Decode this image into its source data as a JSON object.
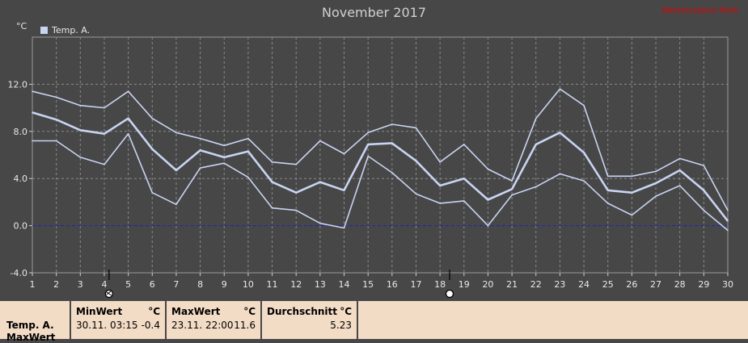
{
  "chart_data": {
    "type": "line",
    "title": "November 2017",
    "ylabel": "°C",
    "x": [
      1,
      2,
      3,
      4,
      5,
      6,
      7,
      8,
      9,
      10,
      11,
      12,
      13,
      14,
      15,
      16,
      17,
      18,
      19,
      20,
      21,
      22,
      23,
      24,
      25,
      26,
      27,
      28,
      29,
      30
    ],
    "ylim": [
      -4.0,
      16.0
    ],
    "yticks": [
      "-4.0",
      "0.0",
      "4.0",
      "8.0",
      "12.0"
    ],
    "ytick_values": [
      -4,
      0,
      4,
      8,
      12
    ],
    "legend": "Temp. A.",
    "grid": true,
    "zero_line": true,
    "series": [
      {
        "role": "max",
        "values": [
          11.4,
          10.9,
          10.2,
          10.0,
          11.4,
          9.1,
          7.9,
          7.4,
          6.8,
          7.4,
          5.4,
          5.2,
          7.2,
          6.1,
          7.9,
          8.6,
          8.3,
          5.4,
          6.9,
          4.8,
          3.8,
          9.1,
          11.6,
          10.2,
          4.2,
          4.2,
          4.6,
          5.7,
          5.1,
          1.3
        ]
      },
      {
        "role": "avg",
        "values": [
          9.6,
          9.0,
          8.1,
          7.8,
          9.1,
          6.5,
          4.7,
          6.4,
          5.8,
          6.3,
          3.7,
          2.8,
          3.7,
          3.0,
          6.9,
          7.0,
          5.5,
          3.4,
          4.0,
          2.2,
          3.1,
          6.9,
          7.9,
          6.2,
          3.0,
          2.8,
          3.6,
          4.7,
          3.0,
          0.4
        ]
      },
      {
        "role": "min",
        "values": [
          7.2,
          7.2,
          5.8,
          5.2,
          7.8,
          2.8,
          1.8,
          4.9,
          5.3,
          4.1,
          1.5,
          1.3,
          0.2,
          -0.2,
          5.9,
          4.5,
          2.7,
          1.9,
          2.1,
          0.0,
          2.6,
          3.3,
          4.4,
          3.8,
          1.9,
          0.9,
          2.5,
          3.4,
          1.3,
          -0.4
        ]
      }
    ],
    "markers": [
      {
        "type": "moon-phase",
        "x": 4.2
      },
      {
        "type": "moon-phase",
        "x": 18.4
      }
    ]
  },
  "header": {
    "unit": "°C",
    "legend_label": "Temp. A.",
    "watermark": "Wetterstation Pelle"
  },
  "stats": {
    "series_name": "Temp. A.",
    "series_row2": "MaxWert",
    "min": {
      "label": "MinWert",
      "unit": "°C",
      "datetime": "30.11.  03:15",
      "value": "-0.4"
    },
    "max": {
      "label": "MaxWert",
      "unit": "°C",
      "datetime": "23.11.  22:00",
      "value": "11.6"
    },
    "avg": {
      "label": "Durchschnitt",
      "unit": "°C",
      "value": "5.23"
    }
  },
  "colors": {
    "background": "#474747",
    "line": "#c8d4f2",
    "grid": "#8a8a8a",
    "zero": "#2020c8",
    "panel": "#f3dcc6"
  }
}
